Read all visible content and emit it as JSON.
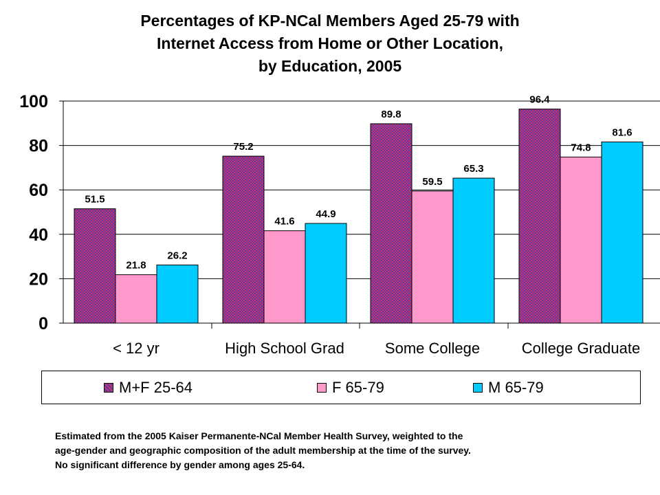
{
  "title": {
    "line1": "Percentages of KP-NCal Members Aged 25-79 with",
    "line2": "Internet Access from Home or Other Location,",
    "line3": "by Education, 2005"
  },
  "chart_data": {
    "type": "bar",
    "categories": [
      "< 12 yr",
      "High School Grad",
      "Some College",
      "College Graduate"
    ],
    "series": [
      {
        "name": "M+F 25-64",
        "values": [
          51.5,
          75.2,
          89.8,
          96.4
        ],
        "color": "#b0306a",
        "pattern": "checker-red-blue"
      },
      {
        "name": "F 65-79",
        "values": [
          21.8,
          41.6,
          59.5,
          74.8
        ],
        "color": "#ff99cc"
      },
      {
        "name": "M 65-79",
        "values": [
          26.2,
          44.9,
          65.3,
          81.6
        ],
        "color": "#00ccff"
      }
    ],
    "ylim": [
      0,
      100
    ],
    "yticks": [
      0,
      20,
      40,
      60,
      80,
      100
    ],
    "grid": true,
    "legend": "bottom",
    "xlabel": "",
    "ylabel": ""
  },
  "legend": {
    "items": [
      "M+F 25-64",
      "F 65-79",
      "M 65-79"
    ]
  },
  "note": {
    "line1": "Estimated from the 2005 Kaiser Permanente-NCal Member Health Survey, weighted to the",
    "line2": "age-gender and geographic composition of the adult membership at the time of the survey.",
    "line3": "No significant difference by gender among ages 25-64."
  }
}
